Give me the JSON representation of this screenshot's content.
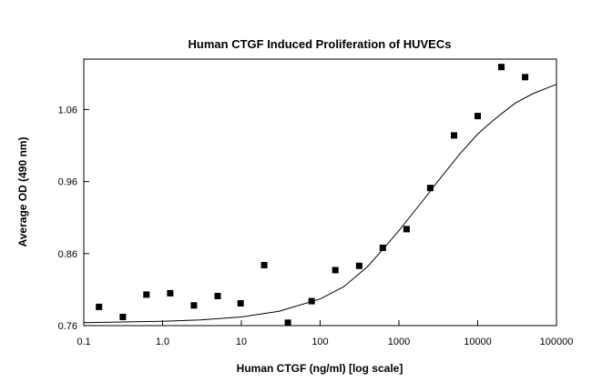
{
  "chart_data": {
    "type": "scatter",
    "title": "Human CTGF Induced Proliferation of HUVECs",
    "xlabel": "Human CTGF (ng/ml) [log scale]",
    "ylabel": "Average OD (490 nm)",
    "x_scale": "log",
    "xlim": [
      0.1,
      100000
    ],
    "ylim": [
      0.76,
      1.13
    ],
    "x_ticks": [
      0.1,
      1,
      10,
      100,
      1000,
      10000,
      100000
    ],
    "x_tick_labels": [
      "0.1",
      "1.0",
      "10",
      "100",
      "1000",
      "10000",
      "100000"
    ],
    "y_ticks": [
      0.76,
      0.86,
      0.96,
      1.06
    ],
    "y_tick_labels": [
      "0.76",
      "0.86",
      "0.96",
      "1.06"
    ],
    "grid": false,
    "legend": "none",
    "marker": "square",
    "color": "#000000",
    "series": [
      {
        "type": "scatter",
        "x": [
          0.156,
          0.313,
          0.625,
          1.25,
          2.5,
          5,
          9.8,
          19.5,
          39,
          78,
          156,
          313,
          625,
          1250,
          2500,
          5000,
          10000,
          20000,
          40000
        ],
        "y": [
          0.786,
          0.772,
          0.803,
          0.805,
          0.788,
          0.801,
          0.791,
          0.844,
          0.764,
          0.794,
          0.837,
          0.843,
          0.868,
          0.894,
          0.951,
          1.024,
          1.051,
          1.119,
          1.105
        ]
      },
      {
        "type": "line",
        "x": [
          0.1,
          0.3,
          1,
          3,
          10,
          30,
          100,
          200,
          400,
          700,
          1000,
          1500,
          2000,
          3000,
          4000,
          6000,
          10000,
          15000,
          20000,
          30000,
          50000,
          100000
        ],
        "y": [
          0.764,
          0.765,
          0.766,
          0.768,
          0.772,
          0.78,
          0.797,
          0.814,
          0.842,
          0.872,
          0.892,
          0.916,
          0.933,
          0.958,
          0.975,
          0.999,
          1.026,
          1.043,
          1.054,
          1.069,
          1.082,
          1.095
        ]
      }
    ]
  }
}
